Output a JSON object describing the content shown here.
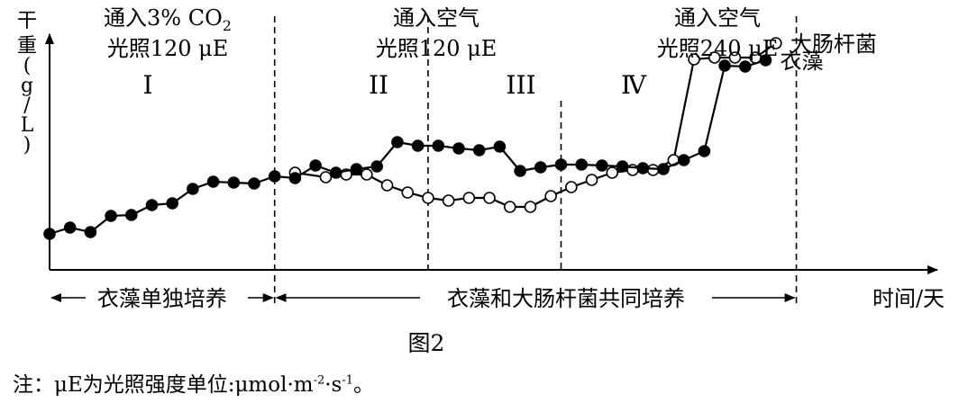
{
  "chart_data": {
    "type": "line",
    "y_axis_label": "干重(g/L)",
    "x_axis_label": "时间/天",
    "phases": [
      {
        "roman": "I",
        "condition": [
          "通入3% CO2",
          "光照120 μE"
        ]
      },
      {
        "roman": "II",
        "condition": [
          "通入空气",
          "光照120 μE"
        ]
      },
      {
        "roman": "III",
        "condition": []
      },
      {
        "roman": "Ⅳ",
        "condition": [
          "通入空气",
          "光照240 μE"
        ]
      }
    ],
    "culture_labels": {
      "algae_only": "衣藻单独培养",
      "co_culture": "衣藻和大肠杆菌共同培养"
    },
    "series": [
      {
        "name": "大肠杆菌",
        "marker": "open-circle",
        "x": [
          12.0,
          13.5,
          14.5,
          15.5,
          16.5,
          17.5,
          18.5,
          19.5,
          20.5,
          21.5,
          22.5,
          23.5,
          24.5,
          25.5,
          26.5,
          27.5,
          28.5,
          29.5,
          30.5,
          31.5,
          32.5,
          33.5,
          34.5,
          35.5
        ],
        "y": [
          0.86,
          0.81,
          0.84,
          0.84,
          0.72,
          0.64,
          0.58,
          0.55,
          0.58,
          0.58,
          0.48,
          0.48,
          0.6,
          0.7,
          0.78,
          0.86,
          0.89,
          0.89,
          1.0,
          2.12,
          2.14,
          2.14,
          2.14,
          2.3
        ]
      },
      {
        "name": "衣藻",
        "marker": "filled-circle",
        "x": [
          0.0,
          1.0,
          2.0,
          3.0,
          4.0,
          5.0,
          6.0,
          7.0,
          8.0,
          9.0,
          10.0,
          11.0,
          12.0,
          13.0,
          14.0,
          15.0,
          16.0,
          17.0,
          18.0,
          19.0,
          20.0,
          21.0,
          22.0,
          23.0,
          24.0,
          25.0,
          26.0,
          27.0,
          28.0,
          29.0,
          30.0,
          31.0,
          32.0,
          33.0,
          34.0,
          35.0
        ],
        "y": [
          0.18,
          0.25,
          0.2,
          0.38,
          0.39,
          0.5,
          0.52,
          0.68,
          0.76,
          0.75,
          0.74,
          0.82,
          0.8,
          0.94,
          0.86,
          0.9,
          0.93,
          1.2,
          1.16,
          1.16,
          1.13,
          1.11,
          1.15,
          0.88,
          0.92,
          0.95,
          0.95,
          0.94,
          0.93,
          0.91,
          0.9,
          1.0,
          1.1,
          2.05,
          2.04,
          2.11
        ]
      }
    ],
    "xlim": [
      0,
      39.5
    ],
    "ylim": [
      0,
      2.75
    ],
    "phase_boundaries": [
      11.0,
      18.5,
      25.0,
      36.5
    ]
  },
  "caption": "图2",
  "note": {
    "prefix": "注：μE为光照强度单位:μmol·m",
    "exp1": "-2",
    "mid": "·s",
    "exp2": "-1",
    "suffix": "。"
  }
}
